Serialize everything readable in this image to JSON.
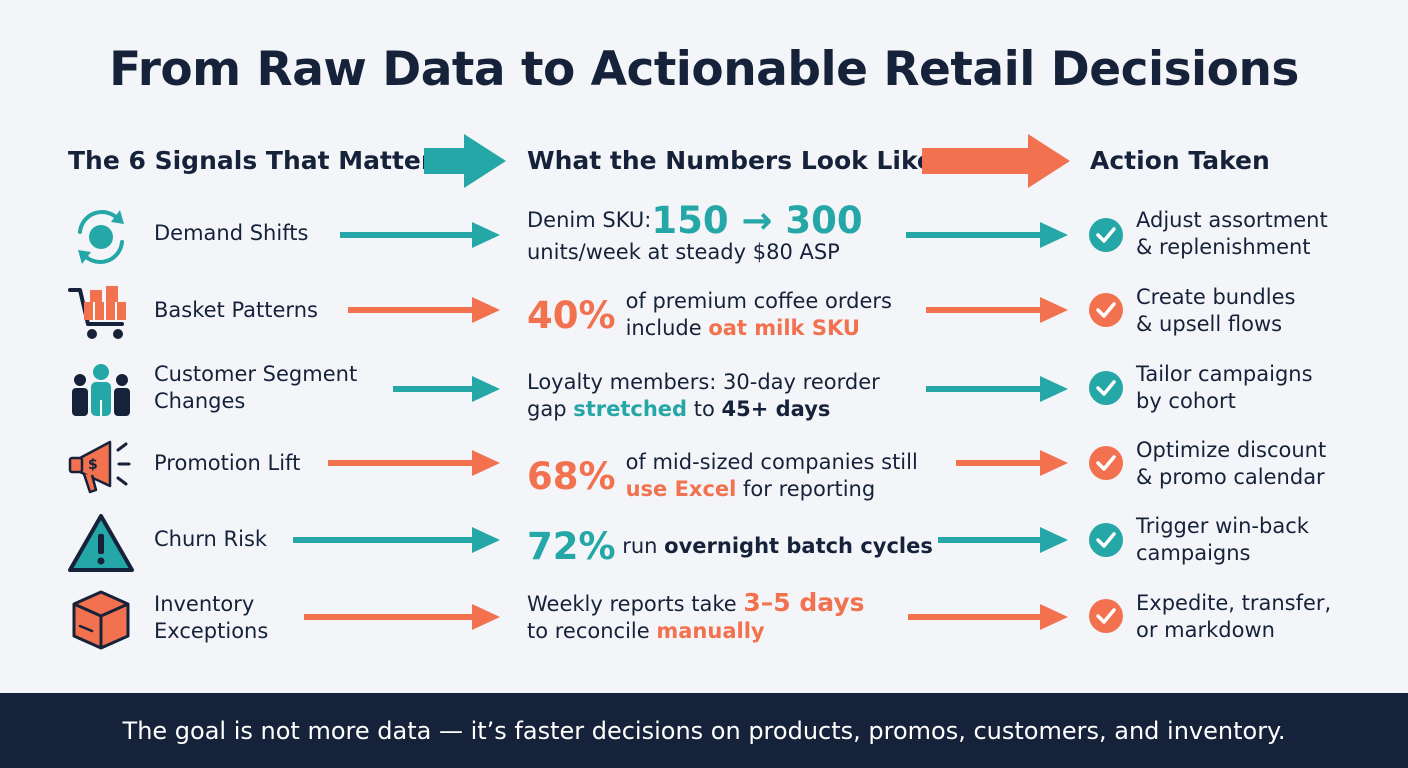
{
  "title": "From Raw Data to Actionable Retail Decisions",
  "columns": {
    "signals": "The 6 Signals That Matter",
    "numbers": "What the Numbers Look Like",
    "actions": "Action Taken"
  },
  "colors": {
    "teal": "#24a7a6",
    "coral": "#f2714f",
    "navy": "#16223a"
  },
  "rows": [
    {
      "icon": "refresh-cycle-icon",
      "signal": [
        "Demand Shifts"
      ],
      "metric": {
        "pre": "Denim SKU: ",
        "big": "150 → 300",
        "line2": "units/week at steady $80 ASP"
      },
      "action": [
        "Adjust assortment",
        "& replenishment"
      ]
    },
    {
      "icon": "shopping-cart-icon",
      "signal": [
        "Basket Patterns"
      ],
      "metric": {
        "big": "40%",
        "line1": "of premium coffee orders",
        "line2a": "include ",
        "line2b": "oat milk SKU"
      },
      "action": [
        "Create bundles",
        "& upsell flows"
      ]
    },
    {
      "icon": "people-group-icon",
      "signal": [
        "Customer Segment",
        "Changes"
      ],
      "metric": {
        "line1": "Loyalty members: 30-day reorder",
        "line2a": "gap ",
        "line2b": "stretched",
        "line2c": " to ",
        "line2d": "45+ days"
      },
      "action": [
        "Tailor campaigns",
        "by cohort"
      ]
    },
    {
      "icon": "megaphone-icon",
      "signal": [
        "Promotion Lift"
      ],
      "metric": {
        "big": "68%",
        "line1": "of mid-sized companies still",
        "line2a": "use Excel",
        "line2b": " for reporting"
      },
      "action": [
        "Optimize discount",
        "& promo calendar"
      ]
    },
    {
      "icon": "warning-icon",
      "signal": [
        "Churn Risk"
      ],
      "metric": {
        "big": "72%",
        "a": " run ",
        "b": "overnight batch cycles"
      },
      "action": [
        "Trigger win-back",
        "campaigns"
      ]
    },
    {
      "icon": "package-box-icon",
      "signal": [
        "Inventory",
        "Exceptions"
      ],
      "metric": {
        "line1a": "Weekly reports take ",
        "line1b": "3–5 days",
        "line2a": "to reconcile ",
        "line2b": "manually"
      },
      "action": [
        "Expedite, transfer,",
        "or markdown"
      ]
    }
  ],
  "footer": "The goal is not more data — it’s faster decisions on products, promos, customers, and inventory."
}
